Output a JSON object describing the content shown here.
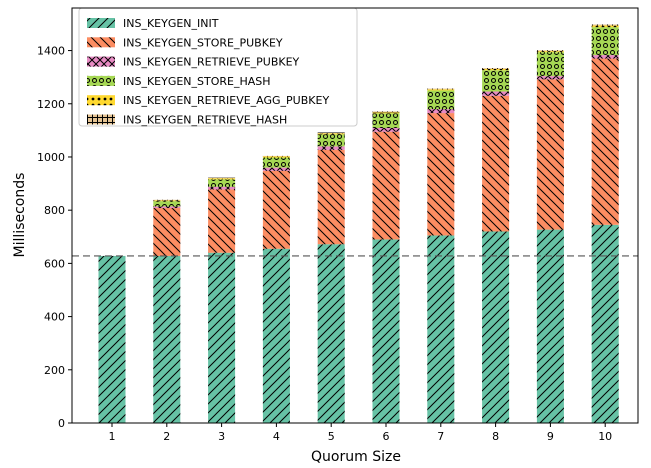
{
  "chart_data": {
    "type": "bar",
    "stacked": true,
    "xlabel": "Quorum Size",
    "ylabel": "Milliseconds",
    "categories": [
      "1",
      "2",
      "3",
      "4",
      "5",
      "6",
      "7",
      "8",
      "9",
      "10"
    ],
    "ylim": [
      0,
      1560
    ],
    "yticks": [
      0,
      200,
      400,
      600,
      800,
      1000,
      1200,
      1400
    ],
    "reference_line": {
      "y": 628,
      "style": "dashed",
      "color": "#555555"
    },
    "legend_position": "upper-left",
    "grid": false,
    "series": [
      {
        "name": "INS_KEYGEN_INIT",
        "color": "#66c2a5",
        "hatch": "diagonal-forward",
        "values": [
          628,
          628,
          640,
          655,
          672,
          690,
          705,
          720,
          727,
          745
        ]
      },
      {
        "name": "INS_KEYGEN_STORE_PUBKEY",
        "color": "#fc8d62",
        "hatch": "diagonal-back",
        "values": [
          0,
          180,
          238,
          293,
          355,
          405,
          460,
          510,
          565,
          625
        ]
      },
      {
        "name": "INS_KEYGEN_RETRIEVE_PUBKEY",
        "color": "#e78ac3",
        "hatch": "cross",
        "values": [
          0,
          6,
          10,
          12,
          13,
          14,
          15,
          16,
          12,
          13
        ]
      },
      {
        "name": "INS_KEYGEN_STORE_HASH",
        "color": "#a6d854",
        "hatch": "circles",
        "values": [
          0,
          20,
          28,
          38,
          45,
          55,
          70,
          80,
          90,
          105
        ]
      },
      {
        "name": "INS_KEYGEN_RETRIEVE_AGG_PUBKEY",
        "color": "#ffd92f",
        "hatch": "stars",
        "values": [
          0,
          3,
          4,
          4,
          4,
          4,
          4,
          5,
          4,
          6
        ]
      },
      {
        "name": "INS_KEYGEN_RETRIEVE_HASH",
        "color": "#e5c494",
        "hatch": "plus",
        "values": [
          0,
          2,
          2,
          2,
          3,
          3,
          3,
          3,
          3,
          4
        ]
      }
    ]
  }
}
